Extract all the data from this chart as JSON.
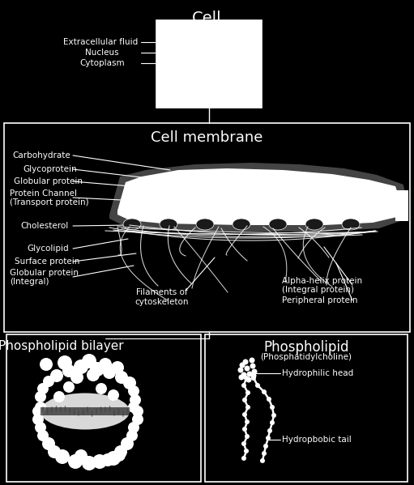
{
  "bg_color": "#000000",
  "fg_color": "#ffffff",
  "title_cell": "Cell",
  "title_membrane": "Cell membrane",
  "title_bilayer": "Phospholipid bilayer",
  "title_phospholipid": "Phospholipid",
  "subtitle_phospholipid": "(Phosphatidylcholine)",
  "label_extracellular": "Extracellular fluid",
  "label_nucleus": "Nucleus",
  "label_cytoplasm": "Cytoplasm",
  "label_carbohydrate": "Carbohydrate",
  "label_glycoprotein": "Glycoprotein",
  "label_globular_protein": "Globular protein",
  "label_protein_channel": "Protein Channel",
  "label_transport_protein": "(Transport protein)",
  "label_cholesterol": "Cholesterol",
  "label_glycolipid": "Glycolipid",
  "label_surface_protein": "Surface protein",
  "label_globular_integral": "Globular protein",
  "label_integral": "(Integral)",
  "label_filaments": "Filaments of\ncytoskeleton",
  "label_alpha_helix": "Alpha-helix protein",
  "label_integral_protein": "(Integral protein)",
  "label_peripheral": "Peripheral protein",
  "label_hydrophilic": "Hydrophilic head",
  "label_hydrophobic": "Hydropbobic tail"
}
